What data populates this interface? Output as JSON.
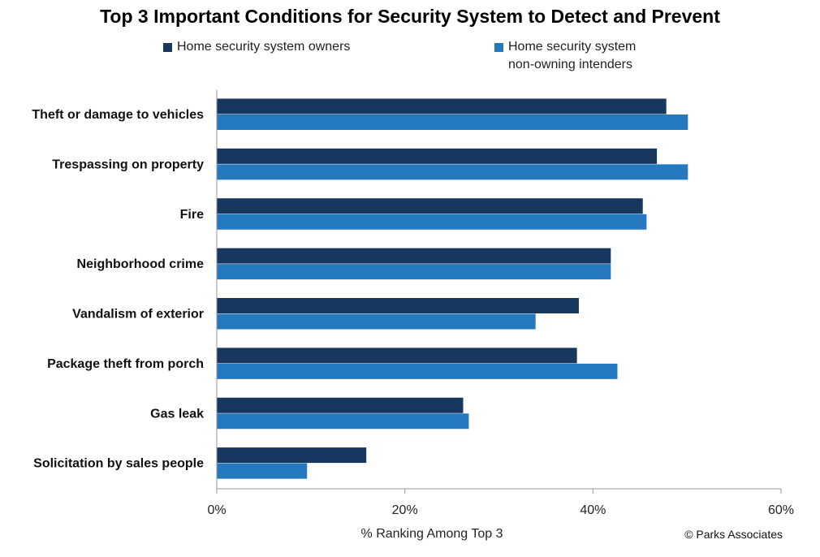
{
  "chart_data": {
    "type": "bar",
    "orientation": "horizontal",
    "title": "Top 3 Important Conditions for Security System to Detect and Prevent",
    "xlabel": "% Ranking Among Top 3",
    "xlim": [
      0,
      60
    ],
    "xticks": [
      "0%",
      "20%",
      "40%",
      "60%"
    ],
    "categories": [
      "Theft or damage to vehicles",
      "Trespassing on property",
      "Fire",
      "Neighborhood crime",
      "Vandalism of exterior",
      "Package theft from porch",
      "Gas leak",
      "Solicitation by sales people"
    ],
    "series": [
      {
        "name": "Home security system owners",
        "color": "#17375e",
        "values": [
          47.8,
          46.8,
          45.3,
          41.9,
          38.5,
          38.3,
          26.2,
          15.9
        ]
      },
      {
        "name": "Home security system non-owning intenders",
        "color": "#2479bf",
        "values": [
          50.1,
          50.1,
          45.7,
          41.9,
          33.9,
          42.6,
          26.8,
          9.6
        ]
      }
    ],
    "grid": false,
    "legend_placement": "top"
  },
  "legend": {
    "owners_label": "Home security system owners",
    "intenders_label_line1": "Home security system",
    "intenders_label_line2": "non-owning intenders"
  },
  "copyright": "© Parks Associates"
}
